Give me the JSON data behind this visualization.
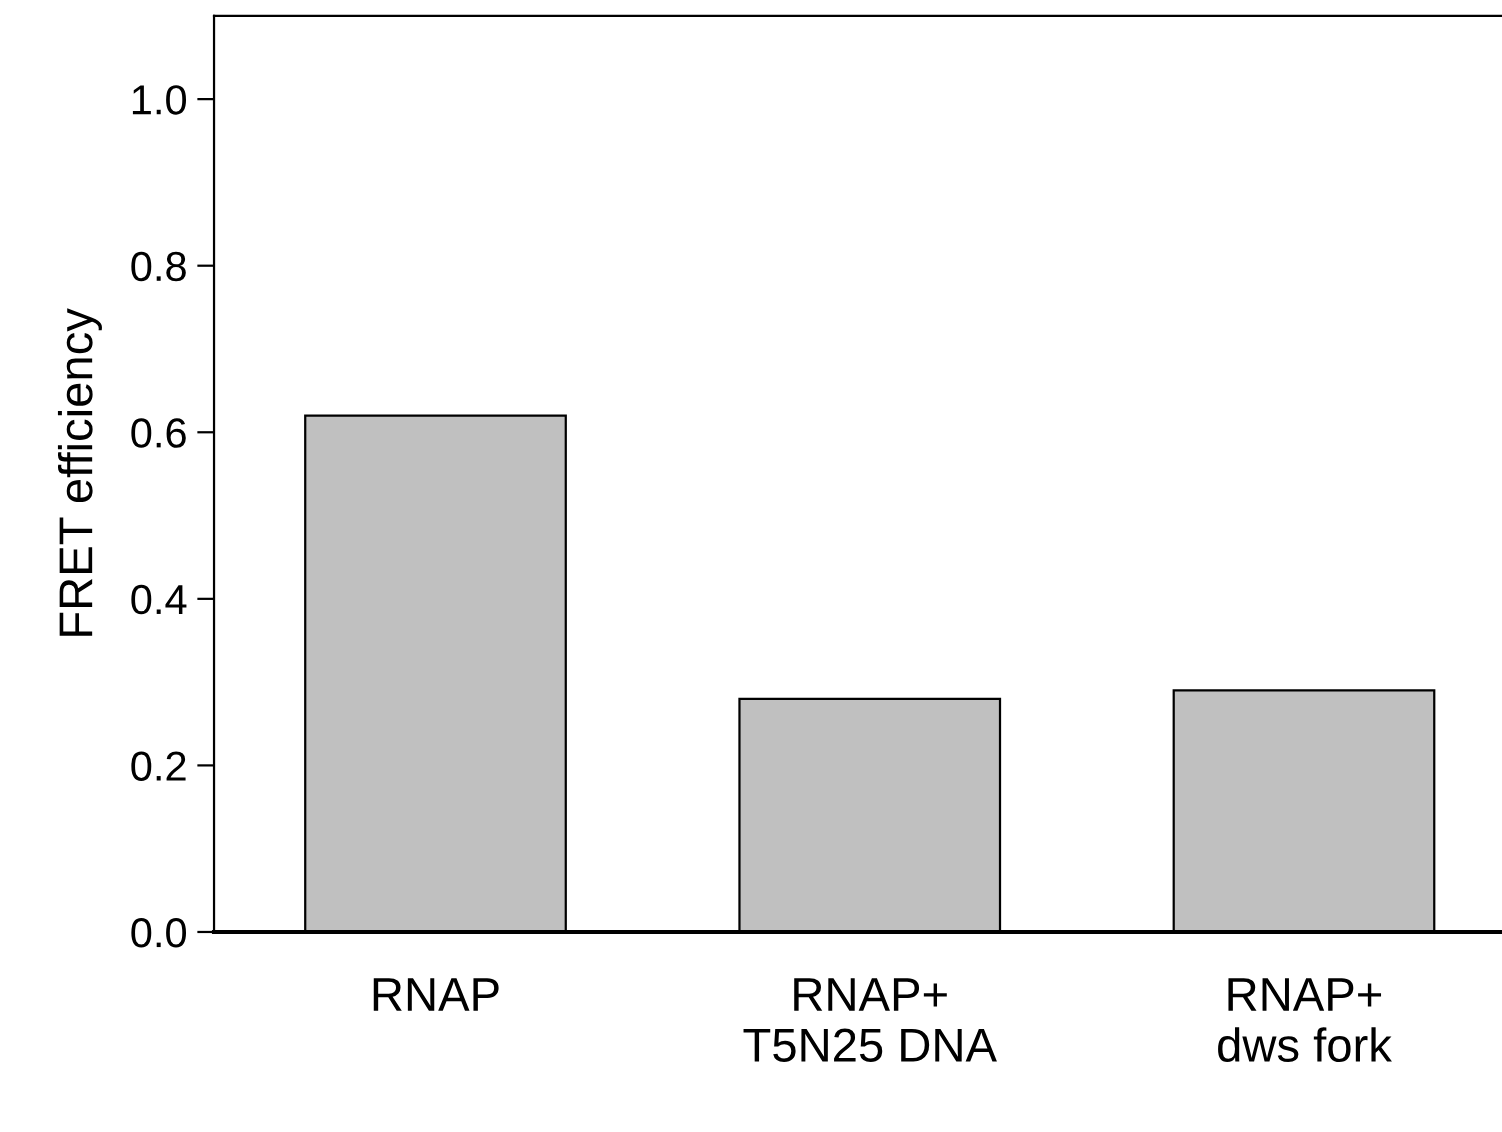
{
  "chart_data": {
    "type": "bar",
    "ylabel": "FRET efficiency",
    "categories": [
      "RNAP",
      "RNAP+\nT5N25 DNA",
      "RNAP+\ndws fork"
    ],
    "values": [
      0.62,
      0.28,
      0.29
    ],
    "color": "#c0c0c0",
    "ylim": [
      0,
      1.1
    ],
    "yticks": [
      {
        "value": 0.0,
        "label": "0.0"
      },
      {
        "value": 0.2,
        "label": "0.2"
      },
      {
        "value": 0.4,
        "label": "0.4"
      },
      {
        "value": 0.6,
        "label": "0.6"
      },
      {
        "value": 0.8,
        "label": "0.8"
      },
      {
        "value": 1.0,
        "label": "1.0"
      }
    ],
    "grid": false,
    "legend": false
  }
}
